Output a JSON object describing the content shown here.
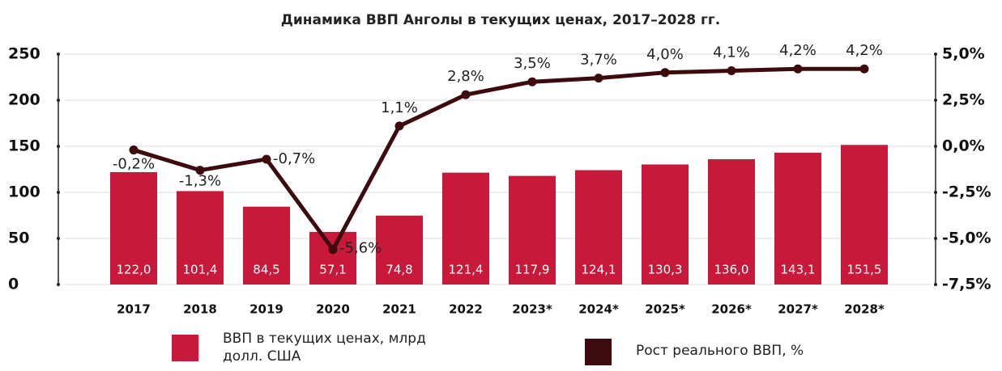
{
  "chart_data": {
    "type": "combo",
    "title": "Динамика ВВП Анголы в текущих ценах, 2017–2028 гг.",
    "categories": [
      "2017",
      "2018",
      "2019",
      "2020",
      "2021",
      "2022",
      "2023*",
      "2024*",
      "2025*",
      "2026*",
      "2027*",
      "2028*"
    ],
    "series": [
      {
        "name": "ВВП в текущих ценах, млрд долл. США",
        "type": "bar",
        "color": "#c8193a",
        "values": [
          122.0,
          101.4,
          84.5,
          57.1,
          74.8,
          121.4,
          117.9,
          124.1,
          130.3,
          136.0,
          143.1,
          151.5
        ],
        "value_labels": [
          "122,0",
          "101,4",
          "84,5",
          "57,1",
          "74,8",
          "121,4",
          "117,9",
          "124,1",
          "130,3",
          "136,0",
          "143,1",
          "151,5"
        ]
      },
      {
        "name": "Рост реального ВВП, %",
        "type": "line",
        "axis": "y2",
        "color": "#3d0a0e",
        "values": [
          -0.2,
          -1.3,
          -0.7,
          -5.6,
          1.1,
          2.8,
          3.5,
          3.7,
          4.0,
          4.1,
          4.2,
          4.2
        ],
        "value_labels": [
          "-0,2%",
          "-1,3%",
          "-0,7%",
          "-5,6%",
          "1,1%",
          "2,8%",
          "3,5%",
          "3,7%",
          "4,0%",
          "4,1%",
          "4,2%",
          "4,2%"
        ]
      }
    ],
    "ylim": [
      0,
      250
    ],
    "yticks": [
      0,
      50,
      100,
      150,
      200,
      250
    ],
    "y2lim": [
      -7.5,
      5.0
    ],
    "y2ticks": [
      {
        "value": -7.5,
        "label": "-7,5%"
      },
      {
        "value": -5.0,
        "label": "-5,0%"
      },
      {
        "value": -2.5,
        "label": "-2,5%"
      },
      {
        "value": 0.0,
        "label": "0,0%"
      },
      {
        "value": 2.5,
        "label": "2,5%"
      },
      {
        "value": 5.0,
        "label": "5,0%"
      }
    ],
    "grid": true
  }
}
